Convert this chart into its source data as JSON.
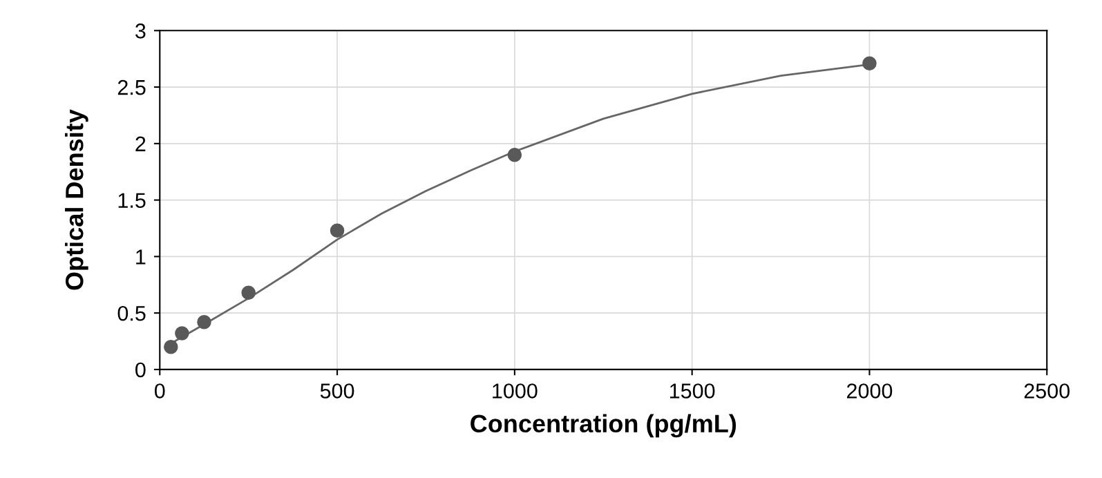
{
  "chart_data": {
    "type": "scatter",
    "xlabel": "Concentration (pg/mL)",
    "ylabel": "Optical Density",
    "xlim": [
      0,
      2500
    ],
    "xticks": [
      0,
      500,
      1000,
      1500,
      2000,
      2500
    ],
    "ylim": [
      0,
      3
    ],
    "yticks": [
      0,
      0.5,
      1,
      1.5,
      2,
      2.5,
      3
    ],
    "grid": true,
    "series": [
      {
        "color": "#595959",
        "marker": "circle",
        "x": [
          31.25,
          62.5,
          125,
          250,
          500,
          1000,
          2000
        ],
        "values": [
          0.2,
          0.32,
          0.42,
          0.68,
          1.23,
          1.9,
          2.71
        ]
      },
      {
        "type": "line",
        "color": "#666666",
        "line_style": "solid",
        "x": [
          31.25,
          125,
          250,
          375,
          500,
          625,
          750,
          875,
          1000,
          1250,
          1500,
          1750,
          2000
        ],
        "values": [
          0.23,
          0.4,
          0.63,
          0.88,
          1.15,
          1.38,
          1.58,
          1.76,
          1.93,
          2.22,
          2.44,
          2.6,
          2.7
        ]
      }
    ]
  }
}
